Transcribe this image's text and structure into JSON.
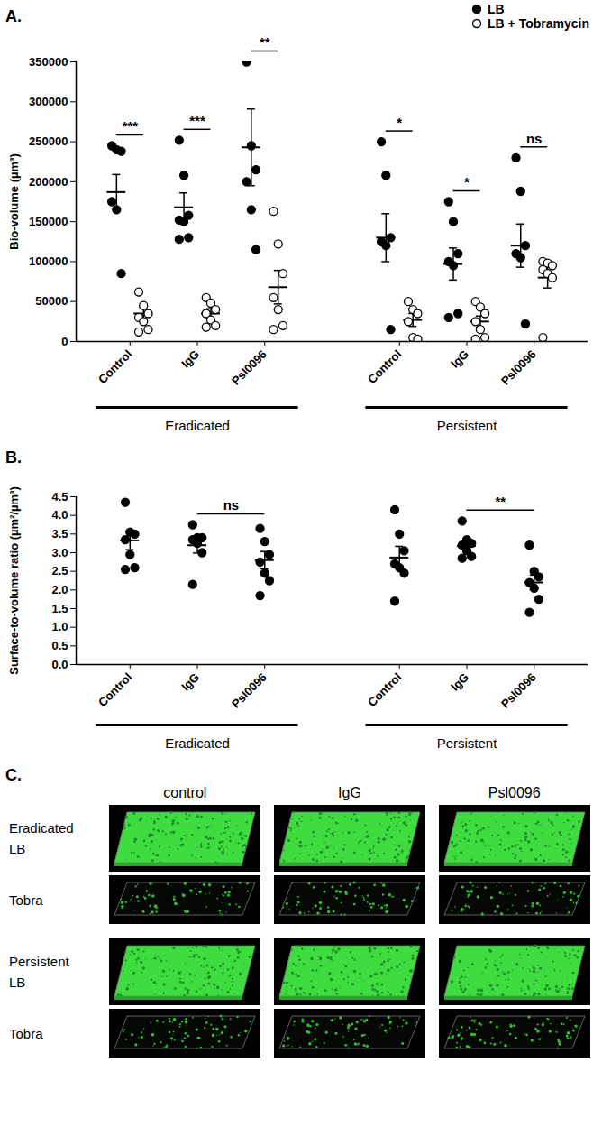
{
  "chart_data": [
    {
      "type": "scatter",
      "title": "A.",
      "y_label": "Bio-volume (µm³)",
      "categories": [
        "Control",
        "IgG",
        "Psl0096",
        "Control",
        "IgG",
        "Psl0096"
      ],
      "category_groups": [
        "Eradicated",
        "Eradicated",
        "Eradicated",
        "Persistent",
        "Persistent",
        "Persistent"
      ],
      "ylim": [
        0,
        350000
      ],
      "yticks": [
        0,
        50000,
        100000,
        150000,
        200000,
        250000,
        300000,
        350000
      ],
      "legend": "top-right",
      "series": [
        {
          "name": "LB",
          "color": "#000000",
          "marker": "filled circle",
          "values": [
            [
              245000,
              240000,
              238000,
              175000,
              165000,
              85000
            ],
            [
              252000,
              208000,
              158000,
              152000,
              150000,
              130000,
              128000
            ],
            [
              350000,
              245000,
              215000,
              200000,
              165000,
              115000
            ],
            [
              250000,
              208000,
              130000,
              125000,
              120000,
              15000
            ],
            [
              175000,
              150000,
              110000,
              100000,
              95000,
              35000,
              30000
            ],
            [
              230000,
              188000,
              120000,
              110000,
              105000,
              22000
            ]
          ],
          "mean": [
            187000,
            168000,
            243000,
            130000,
            97000,
            120000
          ],
          "sem": [
            22000,
            18000,
            48000,
            30000,
            20000,
            27000
          ]
        },
        {
          "name": "LB + Tobramycin",
          "color": "#000000",
          "marker": "open circle",
          "values": [
            [
              62000,
              45000,
              35000,
              30000,
              25000,
              15000,
              12000
            ],
            [
              55000,
              48000,
              40000,
              35000,
              27000,
              20000,
              18000
            ],
            [
              163000,
              122000,
              85000,
              55000,
              40000,
              20000,
              15000
            ],
            [
              50000,
              40000,
              35000,
              25000,
              5000,
              3000
            ],
            [
              50000,
              43000,
              35000,
              25000,
              15000,
              5000,
              3000
            ],
            [
              100000,
              98000,
              95000,
              90000,
              85000,
              80000,
              5000
            ]
          ],
          "mean": [
            35000,
            35000,
            68000,
            27000,
            25000,
            80000
          ],
          "sem": [
            8000,
            6000,
            21000,
            8000,
            7000,
            13000
          ]
        }
      ],
      "annotations": [
        {
          "categories": [
            0
          ],
          "label": "***"
        },
        {
          "categories": [
            1
          ],
          "label": "***"
        },
        {
          "categories": [
            2
          ],
          "label": "**"
        },
        {
          "categories": [
            3
          ],
          "label": "*"
        },
        {
          "categories": [
            4
          ],
          "label": "*"
        },
        {
          "categories": [
            5
          ],
          "label": "ns"
        }
      ]
    },
    {
      "type": "scatter",
      "title": "B.",
      "y_label": "Surface-to-volume ratio (µm²/µm³)",
      "categories": [
        "Control",
        "IgG",
        "Psl0096",
        "Control",
        "IgG",
        "Psl0096"
      ],
      "category_groups": [
        "Eradicated",
        "Eradicated",
        "Eradicated",
        "Persistent",
        "Persistent",
        "Persistent"
      ],
      "ylim": [
        0,
        4.5
      ],
      "yticks": [
        {
          "value": 0,
          "label": "0.0"
        },
        {
          "value": 0.5,
          "label": "0.5"
        },
        {
          "value": 1,
          "label": "1.0"
        },
        {
          "value": 1.5,
          "label": "1.5"
        },
        {
          "value": 2,
          "label": "2.0"
        },
        {
          "value": 2.5,
          "label": "2.5"
        },
        {
          "value": 3,
          "label": "3.0"
        },
        {
          "value": 3.5,
          "label": "3.5"
        },
        {
          "value": 4,
          "label": "4.0"
        },
        {
          "value": 4.5,
          "label": "4.5"
        }
      ],
      "series": [
        {
          "color": "#000000",
          "marker": "filled circle",
          "values": [
            [
              4.35,
              3.55,
              3.5,
              3.35,
              2.95,
              2.6,
              2.55
            ],
            [
              3.75,
              3.4,
              3.4,
              3.35,
              3.25,
              3.0,
              2.15
            ],
            [
              3.65,
              3.3,
              2.95,
              2.75,
              2.45,
              2.25,
              1.85
            ],
            [
              4.15,
              3.5,
              3.05,
              2.7,
              2.6,
              2.45,
              1.7
            ],
            [
              3.85,
              3.35,
              3.25,
              3.2,
              3.05,
              2.9,
              2.85
            ],
            [
              3.2,
              2.5,
              2.35,
              2.2,
              2.05,
              1.75,
              1.4
            ]
          ],
          "mean": [
            3.33,
            3.2,
            2.8,
            2.87,
            3.18,
            2.2
          ],
          "sem": [
            0.25,
            0.21,
            0.23,
            0.3,
            0.12,
            0.2
          ]
        }
      ],
      "annotations": [
        {
          "categories": [
            1,
            2
          ],
          "label": "ns"
        },
        {
          "categories": [
            4,
            5
          ],
          "label": "**"
        }
      ]
    }
  ],
  "panel_c": {
    "title": "C.",
    "columns": [
      "control",
      "IgG",
      "Psl0096"
    ],
    "sections": [
      {
        "name": "Eradicated",
        "rows": [
          "LB",
          "Tobra"
        ]
      },
      {
        "name": "Persistent",
        "rows": [
          "LB",
          "Tobra"
        ]
      }
    ]
  }
}
